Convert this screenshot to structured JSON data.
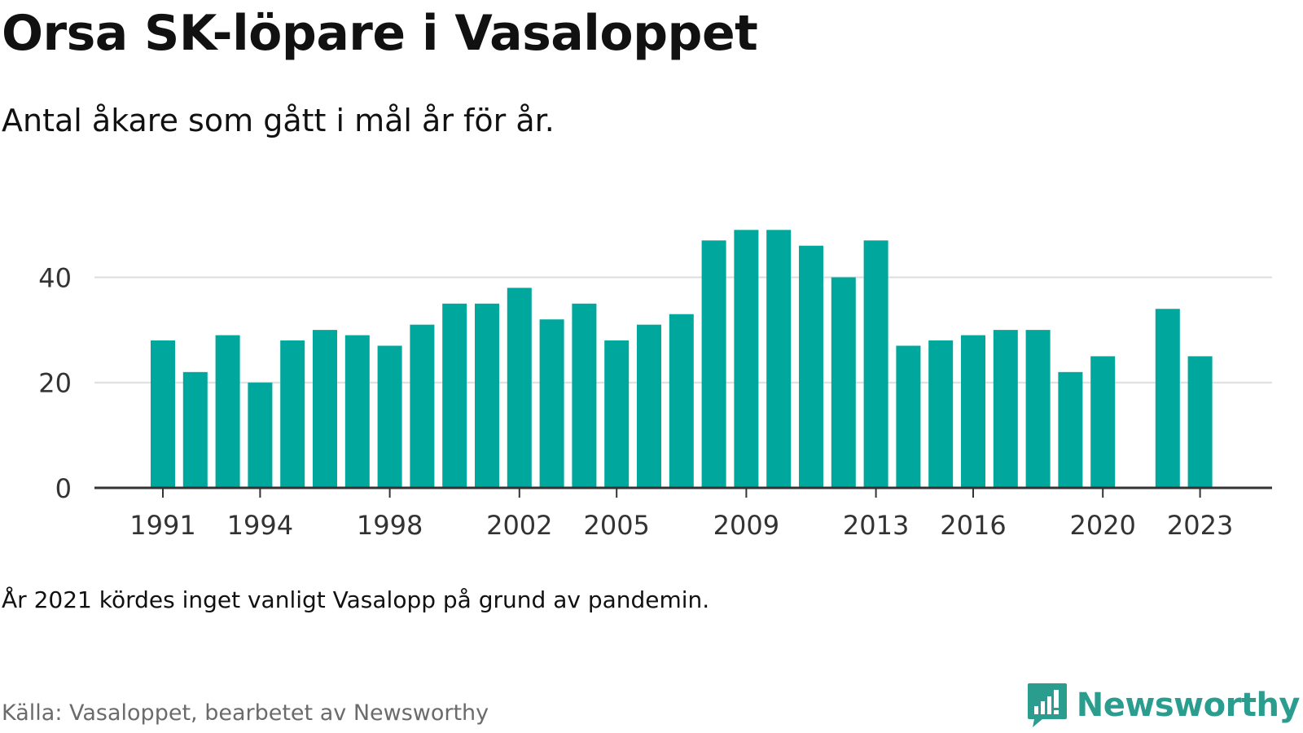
{
  "header": {
    "title": "Orsa SK-löpare i Vasaloppet",
    "subtitle": "Antal åkare som gått i mål år för år."
  },
  "footer": {
    "note": "År 2021 kördes inget vanligt Vasalopp på grund av pandemin.",
    "source": "Källa: Vasaloppet, bearbetet av Newsworthy",
    "logo_text": "Newsworthy",
    "logo_icon": "newsworthy-chart-bubble-icon"
  },
  "colors": {
    "bar": "#00a79d",
    "grid": "#dddddd",
    "axis": "#333333",
    "logo": "#2a9d8f"
  },
  "chart_data": {
    "type": "bar",
    "categories": [
      "1991",
      "1992",
      "1993",
      "1994",
      "1995",
      "1996",
      "1997",
      "1998",
      "1999",
      "2000",
      "2001",
      "2002",
      "2003",
      "2004",
      "2005",
      "2006",
      "2007",
      "2008",
      "2009",
      "2010",
      "2011",
      "2012",
      "2013",
      "2014",
      "2015",
      "2016",
      "2017",
      "2018",
      "2019",
      "2020",
      "2021",
      "2022",
      "2023"
    ],
    "values": [
      28,
      22,
      29,
      20,
      28,
      30,
      29,
      27,
      31,
      35,
      35,
      38,
      32,
      35,
      28,
      31,
      33,
      47,
      49,
      49,
      46,
      40,
      47,
      27,
      28,
      29,
      30,
      30,
      22,
      25,
      null,
      34,
      25
    ],
    "x_tick_labels": [
      "1991",
      "1994",
      "1998",
      "2002",
      "2005",
      "2009",
      "2013",
      "2016",
      "2020",
      "2023"
    ],
    "y_ticks": [
      0,
      20,
      40
    ],
    "ylim": [
      0,
      54
    ],
    "grid": true,
    "title": "Orsa SK-löpare i Vasaloppet",
    "subtitle": "Antal åkare som gått i mål år för år."
  }
}
